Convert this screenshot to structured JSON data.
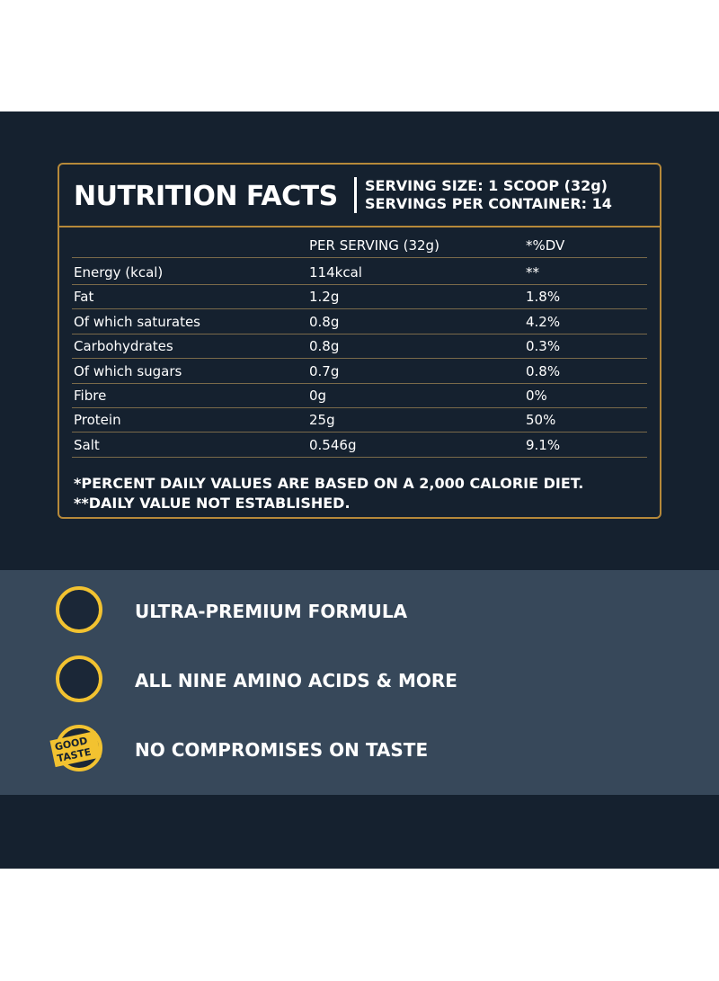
{
  "header": {
    "title": "NUTRITION FACTS",
    "serving_size": "SERVING SIZE: 1 SCOOP (32g)",
    "servings_per_container": "SERVINGS PER CONTAINER: 14"
  },
  "table": {
    "columns": [
      "PER SERVING (32g)",
      "*%DV"
    ],
    "rows": [
      [
        "Energy (kcal)",
        "114kcal",
        "**"
      ],
      [
        "Fat",
        "1.2g",
        "1.8%"
      ],
      [
        "Of which saturates",
        "0.8g",
        "4.2%"
      ],
      [
        "Carbohydrates",
        "0.8g",
        "0.3%"
      ],
      [
        "Of which sugars",
        "0.7g",
        "0.8%"
      ],
      [
        "Fibre",
        "0g",
        "0%"
      ],
      [
        "Protein",
        "25g",
        "50%"
      ],
      [
        "Salt",
        "0.546g",
        "9.1%"
      ]
    ]
  },
  "footnotes": [
    "*PERCENT DAILY VALUES ARE BASED ON A 2,000 CALORIE DIET.",
    "**DAILY VALUE NOT ESTABLISHED."
  ],
  "features": [
    {
      "label": "ULTRA-PREMIUM FORMULA"
    },
    {
      "label": "ALL NINE AMINO ACIDS & MORE"
    },
    {
      "label": "NO COMPROMISES ON TASTE",
      "badge": "GOOD TASTE"
    }
  ]
}
